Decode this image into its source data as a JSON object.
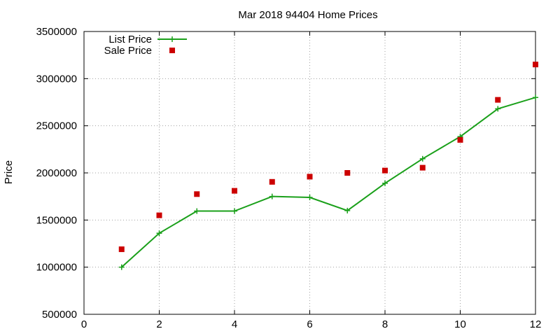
{
  "chart_data": {
    "type": "line",
    "title": "Mar 2018 94404 Home Prices",
    "xlabel": "",
    "ylabel": "Price",
    "xlim": [
      0,
      12
    ],
    "ylim": [
      500000,
      3500000
    ],
    "x_ticks": [
      0,
      2,
      4,
      6,
      8,
      10,
      12
    ],
    "y_ticks": [
      500000,
      1000000,
      1500000,
      2000000,
      2500000,
      3000000,
      3500000
    ],
    "grid": true,
    "legend_position": "top-left",
    "series": [
      {
        "name": "List Price",
        "style": "line-points",
        "marker": "plus",
        "color": "#1aa01a",
        "x": [
          1,
          2,
          3,
          4,
          5,
          6,
          7,
          8,
          9,
          10,
          11,
          12
        ],
        "values": [
          1000000,
          1360000,
          1595000,
          1595000,
          1750000,
          1740000,
          1600000,
          1890000,
          2150000,
          2385000,
          2680000,
          2800000
        ]
      },
      {
        "name": "Sale Price",
        "style": "points",
        "marker": "square",
        "color": "#cc0000",
        "x": [
          1,
          2,
          3,
          4,
          5,
          6,
          7,
          8,
          9,
          10,
          11,
          12
        ],
        "values": [
          1190000,
          1550000,
          1775000,
          1810000,
          1905000,
          1960000,
          2000000,
          2025000,
          2055000,
          2350000,
          2775000,
          3150000
        ]
      }
    ]
  }
}
